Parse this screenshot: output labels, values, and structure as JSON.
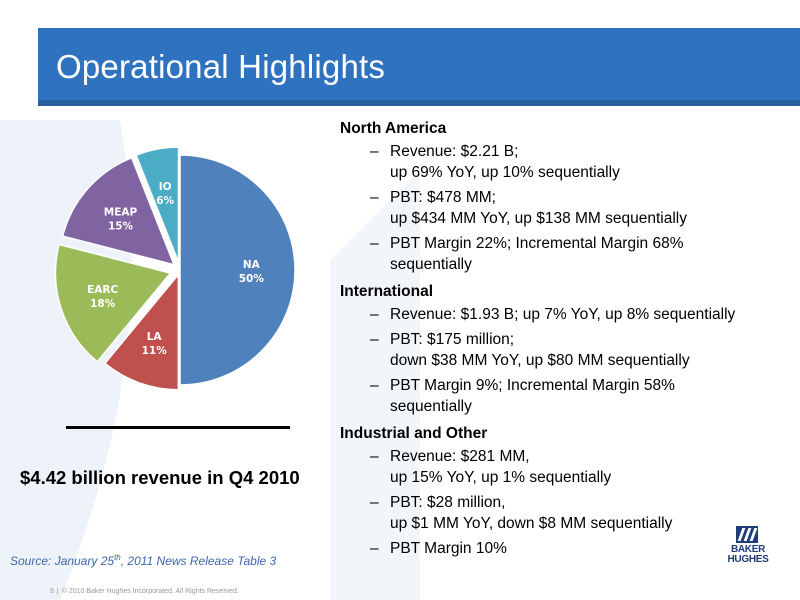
{
  "header": {
    "title": "Operational Highlights"
  },
  "chart_data": {
    "type": "pie",
    "slices": [
      {
        "label": "NA",
        "value": 50,
        "value_label": "50%",
        "color": "#4F81BD"
      },
      {
        "label": "LA",
        "value": 11,
        "value_label": "11%",
        "color": "#C0504D"
      },
      {
        "label": "EARC",
        "value": 18,
        "value_label": "18%",
        "color": "#9BBB59"
      },
      {
        "label": "MEAP",
        "value": 15,
        "value_label": "15%",
        "color": "#8064A2"
      },
      {
        "label": "IO",
        "value": 6,
        "value_label": "6%",
        "color": "#4BACC6"
      }
    ]
  },
  "left": {
    "revenue_caption": "$4.42 billion revenue in Q4 2010",
    "source_text": "Source: January 25",
    "source_sup": "th",
    "source_rest": ", 2011 News Release Table 3"
  },
  "footer": {
    "page": "9",
    "separator": "|",
    "copyright": "© 2010 Baker Hughes Incorporated. All Rights Reserved."
  },
  "logo": {
    "line1": "BAKER",
    "line2": "HUGHES"
  },
  "sections": [
    {
      "title": "North America",
      "items": [
        {
          "text": "Revenue: $2.21 B;",
          "cont": "up 69% YoY, up 10% sequentially"
        },
        {
          "text": "PBT: $478 MM;",
          "cont": "up $434 MM YoY, up $138 MM sequentially"
        },
        {
          "text": "PBT Margin 22%; Incremental Margin 68%",
          "cont": "sequentially"
        }
      ]
    },
    {
      "title": "International",
      "items": [
        {
          "text": "Revenue: $1.93 B; up 7% YoY, up 8% sequentially",
          "cont": ""
        },
        {
          "text": "PBT: $175 million;",
          "cont": "down $38 MM YoY, up $80 MM sequentially"
        },
        {
          "text": "PBT Margin 9%; Incremental Margin 58%",
          "cont": "sequentially"
        }
      ]
    },
    {
      "title": "Industrial and Other",
      "items": [
        {
          "text": "Revenue: $281 MM,",
          "cont": "up 15% YoY, up 1% sequentially"
        },
        {
          "text": "PBT: $28 million,",
          "cont": "up $1 MM YoY, down $8 MM sequentially"
        },
        {
          "text": "PBT Margin 10%",
          "cont": ""
        }
      ]
    }
  ],
  "dash_glyph": "–"
}
